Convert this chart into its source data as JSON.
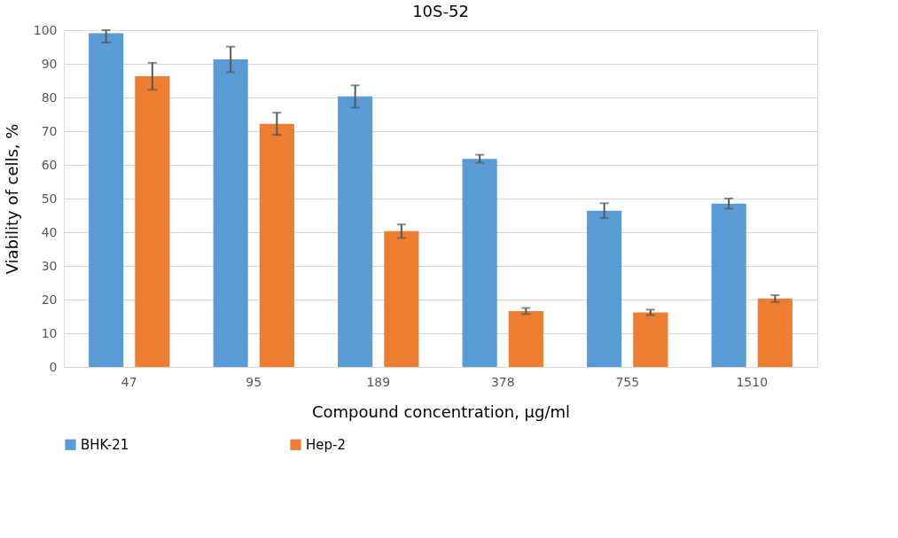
{
  "chart_data": {
    "type": "bar",
    "title": "10S-52",
    "xlabel": "Compound concentration, μg/ml",
    "ylabel": "Viability of  cells, %",
    "categories": [
      "47",
      "95",
      "189",
      "378",
      "755",
      "1510"
    ],
    "series": [
      {
        "name": "BHK-21",
        "color": "#5b9bd5",
        "values": [
          99.1,
          91.3,
          80.3,
          61.8,
          46.4,
          48.5
        ],
        "errors": [
          [
            96.3,
            100
          ],
          3.8,
          3.3,
          1.2,
          2.2,
          1.5
        ]
      },
      {
        "name": "Hep-2",
        "color": "#ed7d31",
        "values": [
          86.3,
          72.2,
          40.3,
          16.6,
          16.2,
          20.3
        ],
        "errors": [
          4,
          3.3,
          2,
          0.9,
          0.8,
          1
        ]
      }
    ],
    "ylim": [
      0,
      100
    ],
    "yticks": [
      0,
      10,
      20,
      30,
      40,
      50,
      60,
      70,
      80,
      90,
      100
    ],
    "grid": "y",
    "legend": "bottom"
  }
}
